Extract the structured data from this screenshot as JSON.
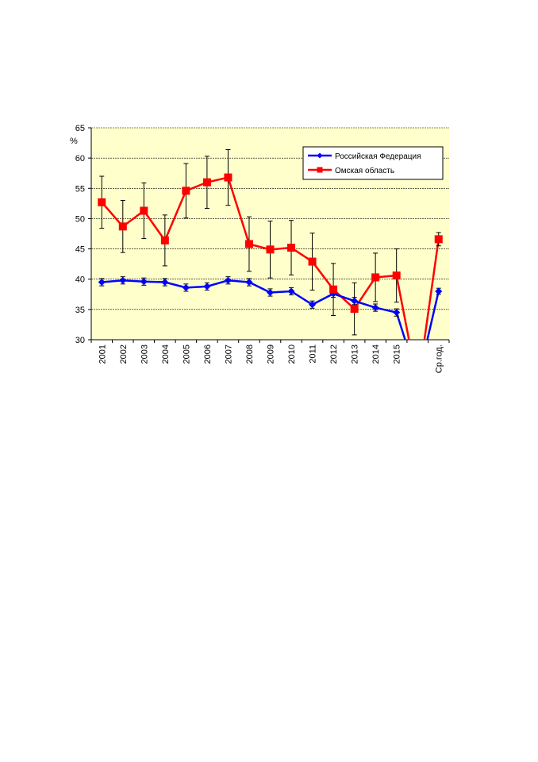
{
  "chart_data": {
    "type": "line",
    "ylabel": "%",
    "ylim": [
      30,
      65
    ],
    "yticks": [
      30,
      35,
      40,
      45,
      50,
      55,
      60,
      65
    ],
    "grid": true,
    "legend_position": "top-right",
    "categories": [
      "2001",
      "2002",
      "2003",
      "2004",
      "2005",
      "2006",
      "2007",
      "2008",
      "2009",
      "2010",
      "2011",
      "2012",
      "2013",
      "2014",
      "2015",
      "",
      "Ср.год."
    ],
    "series": [
      {
        "name": "Российская Федерация",
        "color": "#0000ff",
        "marker": "diamond",
        "values": [
          39.5,
          39.8,
          39.6,
          39.5,
          38.6,
          38.8,
          39.8,
          39.5,
          37.8,
          38.0,
          35.8,
          37.6,
          36.4,
          35.3,
          34.5,
          null,
          38.0
        ],
        "error": [
          0.6,
          0.6,
          0.6,
          0.6,
          0.6,
          0.6,
          0.6,
          0.6,
          0.6,
          0.6,
          0.6,
          0.6,
          0.6,
          0.6,
          0.6,
          null,
          0.5
        ]
      },
      {
        "name": "Омская область",
        "color": "#ff0000",
        "marker": "square",
        "values": [
          52.7,
          48.7,
          51.3,
          46.4,
          54.6,
          56.0,
          56.8,
          45.8,
          44.9,
          45.2,
          42.9,
          38.3,
          35.1,
          40.3,
          40.6,
          null,
          46.6
        ],
        "error": [
          4.3,
          4.3,
          4.6,
          4.2,
          4.5,
          4.3,
          4.6,
          4.5,
          4.7,
          4.5,
          4.7,
          4.3,
          4.3,
          4.0,
          4.4,
          null,
          1.1
        ]
      }
    ]
  }
}
